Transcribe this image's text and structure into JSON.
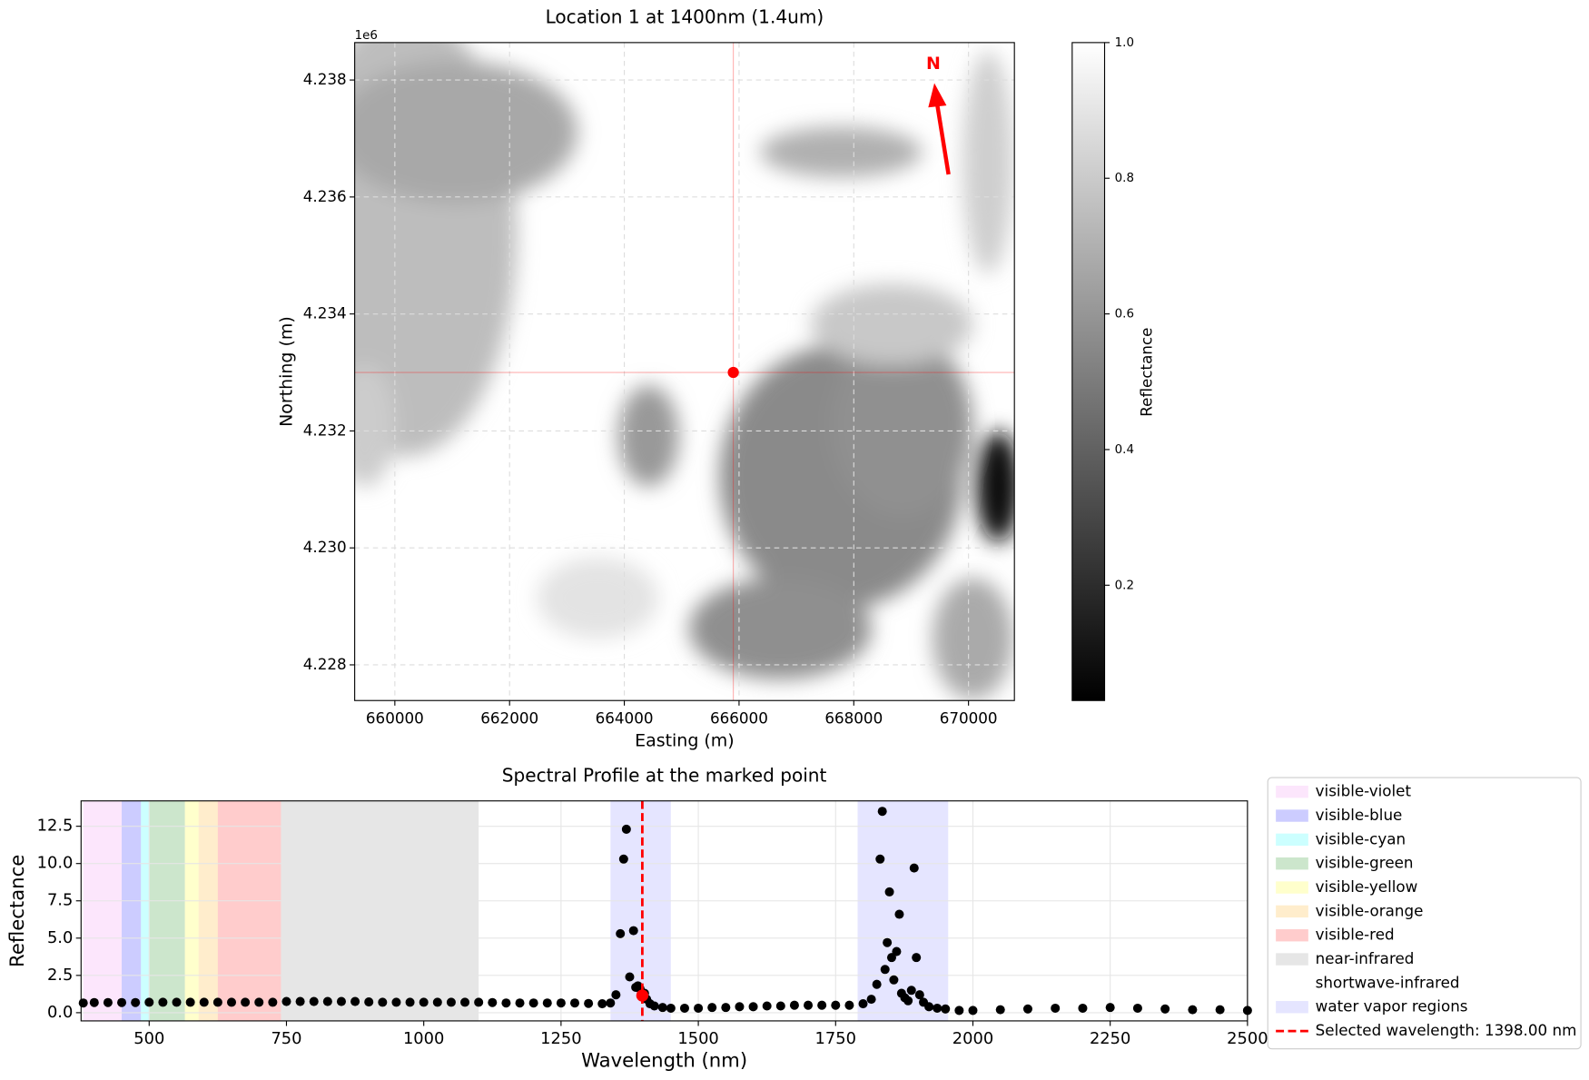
{
  "chart_data": [
    {
      "type": "image",
      "title": "Location 1 at 1400nm (1.4um)",
      "xlabel": "Easting (m)",
      "ylabel": "Northing (m)",
      "xlim": [
        659300,
        670800
      ],
      "xticks": [
        660000,
        662000,
        664000,
        666000,
        668000,
        670000
      ],
      "ylim": [
        4.22739,
        4.23864
      ],
      "yticks": [
        4.228,
        {
          "value": 4.23,
          "label": "4.230"
        },
        4.232,
        4.234,
        4.236,
        4.238
      ],
      "y_offset_label": "1e6",
      "grid": true,
      "marker": {
        "x": 665900,
        "y": 4.233,
        "color": "red"
      },
      "north_label": "N",
      "colorbar": {
        "label": "Reflectance",
        "lim": [
          0.03,
          1.0
        ],
        "ticks": [
          0.2,
          0.4,
          0.6,
          0.8,
          {
            "value": 1,
            "label": "1.0"
          }
        ],
        "cmap": "gray"
      }
    },
    {
      "type": "scatter",
      "title": "Spectral Profile at the marked point",
      "xlabel": "Wavelength (nm)",
      "ylabel": "Reflectance",
      "xlim": [
        376,
        2500
      ],
      "xticks": [
        500,
        750,
        1000,
        1250,
        1500,
        1750,
        2000,
        2250,
        2500
      ],
      "ylim": [
        -0.55,
        14.2
      ],
      "yticks": [
        {
          "value": 0,
          "label": "0.0"
        },
        2.5,
        {
          "value": 5,
          "label": "5.0"
        },
        7.5,
        {
          "value": 10,
          "label": "10.0"
        },
        12.5
      ],
      "grid": true,
      "bands": [
        {
          "name": "visible-violet",
          "color": "violet",
          "alpha": 0.2,
          "ranges": [
            [
              380,
              450
            ]
          ]
        },
        {
          "name": "visible-blue",
          "color": "blue",
          "alpha": 0.2,
          "ranges": [
            [
              450,
              485
            ]
          ]
        },
        {
          "name": "visible-cyan",
          "color": "cyan",
          "alpha": 0.2,
          "ranges": [
            [
              485,
              500
            ]
          ]
        },
        {
          "name": "visible-green",
          "color": "green",
          "alpha": 0.2,
          "ranges": [
            [
              500,
              565
            ]
          ]
        },
        {
          "name": "visible-yellow",
          "color": "yellow",
          "alpha": 0.2,
          "ranges": [
            [
              565,
              590
            ]
          ]
        },
        {
          "name": "visible-orange",
          "color": "orange",
          "alpha": 0.2,
          "ranges": [
            [
              590,
              625
            ]
          ]
        },
        {
          "name": "visible-red",
          "color": "red",
          "alpha": 0.2,
          "ranges": [
            [
              625,
              740
            ]
          ]
        },
        {
          "name": "near-infrared",
          "color": "gray",
          "alpha": 0.2,
          "ranges": [
            [
              740,
              1100
            ]
          ]
        },
        {
          "name": "shortwave-infrared",
          "color": "white",
          "alpha": 0.2,
          "ranges": [
            [
              1100,
              2500
            ]
          ]
        },
        {
          "name": "water vapor regions",
          "color": "blue",
          "alpha": 0.1,
          "ranges": [
            [
              1340,
              1450
            ],
            [
              1790,
              1955
            ]
          ]
        }
      ],
      "series": [
        {
          "color": "black",
          "x": [
            380,
            400,
            425,
            450,
            475,
            500,
            525,
            550,
            575,
            600,
            625,
            650,
            675,
            700,
            725,
            750,
            775,
            800,
            825,
            850,
            875,
            900,
            925,
            950,
            975,
            1000,
            1025,
            1050,
            1075,
            1100,
            1125,
            1150,
            1175,
            1200,
            1225,
            1250,
            1275,
            1300,
            1325,
            1340,
            1350,
            1358,
            1364,
            1369,
            1375,
            1382,
            1386,
            1390,
            1394,
            1402,
            1406,
            1412,
            1420,
            1435,
            1450,
            1475,
            1500,
            1525,
            1550,
            1575,
            1600,
            1625,
            1650,
            1675,
            1700,
            1725,
            1750,
            1775,
            1800,
            1815,
            1825,
            1831,
            1835,
            1840,
            1844,
            1848,
            1852,
            1856,
            1861,
            1866,
            1870,
            1876,
            1882,
            1888,
            1893,
            1897,
            1903,
            1910,
            1920,
            1935,
            1950,
            1975,
            2000,
            2050,
            2100,
            2150,
            2200,
            2250,
            2300,
            2350,
            2400,
            2450,
            2500
          ],
          "values": [
            0.65,
            0.68,
            0.68,
            0.68,
            0.68,
            0.7,
            0.7,
            0.7,
            0.7,
            0.7,
            0.7,
            0.7,
            0.7,
            0.7,
            0.7,
            0.75,
            0.75,
            0.75,
            0.75,
            0.75,
            0.75,
            0.72,
            0.7,
            0.7,
            0.7,
            0.7,
            0.7,
            0.7,
            0.7,
            0.7,
            0.68,
            0.65,
            0.65,
            0.65,
            0.65,
            0.65,
            0.65,
            0.62,
            0.6,
            0.65,
            1.2,
            5.3,
            10.3,
            12.3,
            2.4,
            5.5,
            1.7,
            1.8,
            1.6,
            1.3,
            0.9,
            0.6,
            0.45,
            0.35,
            0.3,
            0.3,
            0.3,
            0.35,
            0.35,
            0.4,
            0.4,
            0.45,
            0.45,
            0.5,
            0.5,
            0.5,
            0.5,
            0.5,
            0.6,
            0.9,
            1.9,
            10.3,
            13.5,
            2.9,
            4.7,
            8.1,
            3.7,
            2.2,
            4.1,
            6.6,
            1.3,
            1.0,
            0.8,
            1.5,
            9.7,
            3.7,
            1.2,
            0.7,
            0.4,
            0.3,
            0.25,
            0.15,
            0.15,
            0.2,
            0.25,
            0.3,
            0.3,
            0.35,
            0.3,
            0.25,
            0.2,
            0.2,
            0.15
          ]
        }
      ],
      "marked_point": {
        "x": 1398,
        "y": 1.15,
        "color": "red"
      },
      "selected_line": {
        "x": 1398,
        "label": "Selected wavelength: 1398.00 nm",
        "color": "red"
      }
    }
  ]
}
